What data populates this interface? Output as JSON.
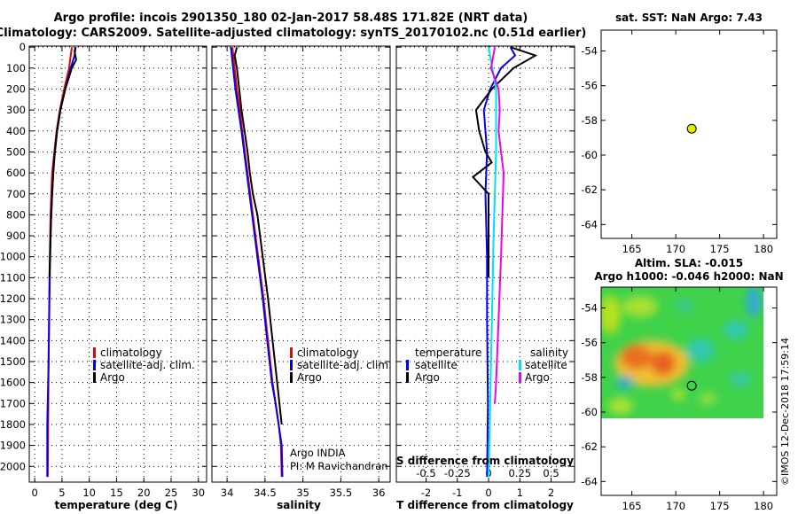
{
  "title": {
    "line1": "Argo profile: incois 2901350_180 02-Jan-2017 58.48S 171.82E (NRT data)",
    "line2": "Climatology: CARS2009. Satellite-adjusted climatology: synTS_20170102.nc (0.51d earlier)"
  },
  "colors": {
    "climatology": "#ee0000",
    "satellite": "#0000ee",
    "argo": "#000000",
    "salinity_satellite": "#00e0f0",
    "salinity_argo": "#ee00ee",
    "marker": "#ddee00"
  },
  "legends": {
    "profile": [
      "climatology",
      "satellite-adj. clim.",
      "Argo"
    ],
    "diff_temperature_title": "temperature",
    "diff_salinity_title": "salinity",
    "diff_items": [
      "satellite",
      "Argo"
    ]
  },
  "annotation": {
    "line1": "Argo INDIA",
    "line2": "PI: M Ravichandran"
  },
  "sst_panel": {
    "title": "sat. SST: NaN Argo: 7.43"
  },
  "sla_panel": {
    "title1": "Altim. SLA: -0.015",
    "title2": "Argo h1000: -0.046 h2000: NaN"
  },
  "footer": "©IMOS 12-Dec-2018 17:59:14",
  "chart_data": [
    {
      "type": "line",
      "name": "temperature-profile",
      "xlabel": "temperature (deg C)",
      "ylabel": "",
      "xlim": [
        -1,
        31.5
      ],
      "ylim": [
        2075,
        -5
      ],
      "xticks": [
        0,
        5,
        10,
        15,
        20,
        25,
        30
      ],
      "yticks": [
        0,
        100,
        200,
        300,
        400,
        500,
        600,
        700,
        800,
        900,
        1000,
        1100,
        1200,
        1300,
        1400,
        1500,
        1600,
        1700,
        1800,
        1900,
        2000
      ],
      "grid": true,
      "series": [
        {
          "name": "climatology",
          "color": "#ee0000",
          "x": [
            6.8,
            6.3,
            5.4,
            4.6,
            4.0,
            3.6,
            3.2,
            2.9,
            2.7,
            2.55,
            2.4
          ],
          "y": [
            0,
            100,
            200,
            300,
            400,
            500,
            600,
            800,
            1100,
            1500,
            2050
          ]
        },
        {
          "name": "satellite-adj. clim.",
          "color": "#0000ee",
          "x": [
            7.5,
            7.3,
            6.6,
            5.6,
            4.7,
            4.1,
            3.5,
            3.0,
            2.75,
            2.55,
            2.3,
            2.3
          ],
          "y": [
            0,
            40,
            100,
            200,
            300,
            400,
            550,
            800,
            1100,
            1500,
            1800,
            2050
          ]
        },
        {
          "name": "Argo",
          "color": "#000000",
          "x": [
            7.5,
            7.3,
            7.6,
            6.8,
            5.6,
            4.7,
            4.1,
            3.7,
            3.4,
            3.2,
            2.9,
            2.7
          ],
          "y": [
            0,
            20,
            60,
            100,
            200,
            300,
            400,
            500,
            600,
            700,
            900,
            1100
          ]
        }
      ]
    },
    {
      "type": "line",
      "name": "salinity-profile",
      "xlabel": "salinity",
      "ylabel": "",
      "xlim": [
        33.8,
        36.15
      ],
      "ylim": [
        2075,
        -5
      ],
      "xticks": [
        34,
        34.5,
        35,
        35.5,
        36
      ],
      "yticks": [
        0,
        100,
        200,
        300,
        400,
        500,
        600,
        700,
        800,
        900,
        1000,
        1100,
        1200,
        1300,
        1400,
        1500,
        1600,
        1700,
        1800,
        1900,
        2000
      ],
      "grid": true,
      "series": [
        {
          "name": "climatology",
          "color": "#ee0000",
          "x": [
            34.07,
            34.1,
            34.13,
            34.17,
            34.2,
            34.27,
            34.34,
            34.41,
            34.48,
            34.54,
            34.6,
            34.64,
            34.68,
            34.71,
            34.72
          ],
          "y": [
            0,
            100,
            200,
            300,
            400,
            600,
            800,
            1000,
            1200,
            1400,
            1600,
            1700,
            1800,
            1900,
            2050
          ]
        },
        {
          "name": "satellite-adj. clim.",
          "color": "#0000ee",
          "x": [
            34.05,
            34.08,
            34.11,
            34.15,
            34.19,
            34.26,
            34.33,
            34.4,
            34.47,
            34.53,
            34.59,
            34.64,
            34.68,
            34.72,
            34.73
          ],
          "y": [
            0,
            100,
            200,
            300,
            400,
            600,
            800,
            1000,
            1200,
            1400,
            1600,
            1700,
            1800,
            1900,
            2050
          ]
        },
        {
          "name": "Argo",
          "color": "#000000",
          "x": [
            34.13,
            34.1,
            34.13,
            34.16,
            34.19,
            34.23,
            34.27,
            34.3,
            34.34,
            34.4,
            34.47,
            34.54,
            34.6,
            34.66,
            34.72
          ],
          "y": [
            0,
            40,
            100,
            200,
            300,
            400,
            500,
            600,
            700,
            800,
            1000,
            1200,
            1400,
            1600,
            1800
          ]
        }
      ]
    },
    {
      "type": "line",
      "name": "difference-from-climatology",
      "xlabel": "T difference from climatology",
      "x2label": "S difference from climatology",
      "ylabel": "",
      "xlim": [
        -2.95,
        2.75
      ],
      "ylim": [
        2075,
        -5
      ],
      "xticks": [
        -2,
        -1,
        0,
        1,
        2
      ],
      "x2lim": [
        -0.7375,
        0.6875
      ],
      "x2ticks": [
        -0.5,
        -0.25,
        0,
        0.25,
        0.5
      ],
      "x2ticklabels": [
        "-0.5",
        "-0.25",
        "0",
        "0.25",
        "0.5"
      ],
      "yticks": [
        0,
        100,
        200,
        300,
        400,
        500,
        600,
        700,
        800,
        900,
        1000,
        1100,
        1200,
        1300,
        1400,
        1500,
        1600,
        1700,
        1800,
        1900,
        2000
      ],
      "grid": true,
      "series": [
        {
          "name": "temperature satellite",
          "color": "#0000ee",
          "axis": "T",
          "x": [
            0.7,
            0.85,
            0.4,
            0.05,
            -0.15,
            -0.1,
            -0.05,
            -0.1,
            -0.05,
            -0.05,
            -0.02,
            -0.05
          ],
          "y": [
            0,
            40,
            100,
            200,
            300,
            400,
            500,
            700,
            1000,
            1300,
            1700,
            2050
          ]
        },
        {
          "name": "temperature Argo",
          "color": "#000000",
          "axis": "T",
          "x": [
            0.7,
            1.5,
            0.8,
            0.1,
            -0.4,
            -0.3,
            -0.1,
            0.1,
            -0.5,
            0.0,
            0.0,
            0.0
          ],
          "y": [
            0,
            40,
            100,
            200,
            300,
            400,
            500,
            550,
            620,
            700,
            900,
            1100
          ]
        },
        {
          "name": "salinity satellite",
          "color": "#00e0f0",
          "axis": "S",
          "x": [
            0.0,
            0.03,
            0.06,
            0.06,
            0.06,
            0.05,
            0.04,
            0.03,
            0.02,
            0.01,
            0.0
          ],
          "y": [
            0,
            100,
            200,
            300,
            500,
            700,
            900,
            1200,
            1500,
            1800,
            2050
          ]
        },
        {
          "name": "salinity Argo",
          "color": "#ee00ee",
          "axis": "S",
          "x": [
            0.05,
            0.02,
            0.08,
            0.09,
            0.08,
            0.1,
            0.12,
            0.11,
            0.1,
            0.08,
            0.06,
            0.05
          ],
          "y": [
            0,
            100,
            200,
            300,
            400,
            500,
            600,
            800,
            1000,
            1300,
            1600,
            1700
          ]
        }
      ]
    },
    {
      "type": "scatter",
      "name": "sst-map",
      "title": "sat. SST: NaN Argo: 7.43",
      "xlim": [
        161.5,
        181.5
      ],
      "ylim": [
        -64.8,
        -52.8
      ],
      "xticks": [
        165,
        170,
        175,
        180
      ],
      "yticks": [
        -54,
        -56,
        -58,
        -60,
        -62,
        -64
      ],
      "points": [
        {
          "lon": 171.82,
          "lat": -58.48
        }
      ]
    },
    {
      "type": "heatmap",
      "name": "sla-map",
      "title": "Altim. SLA: -0.015",
      "subtitle": "Argo h1000: -0.046 h2000: NaN",
      "xlim": [
        161.5,
        181.5
      ],
      "ylim": [
        -64.8,
        -52.8
      ],
      "xticks": [
        165,
        170,
        175,
        180
      ],
      "yticks": [
        -54,
        -56,
        -58,
        -60,
        -62,
        -64
      ],
      "data_extent": {
        "lon": [
          161.5,
          181.5
        ],
        "lat": [
          -60.1,
          -52.8
        ]
      },
      "points": [
        {
          "lon": 171.82,
          "lat": -58.48
        }
      ]
    }
  ]
}
